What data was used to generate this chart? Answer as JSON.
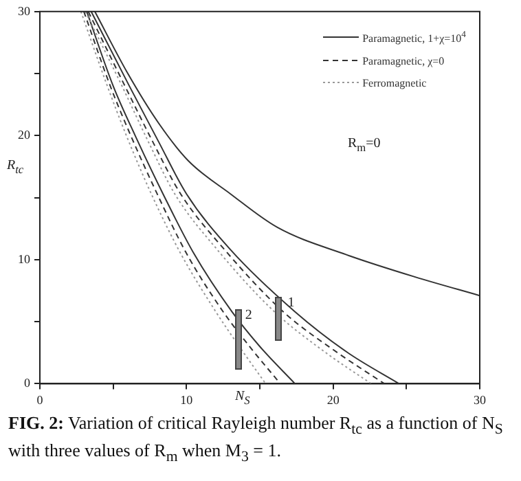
{
  "chart_data": {
    "type": "line",
    "title": "FIG. 2: Variation of critical Rayleigh number R$_{tc}$ as a function of N$_{S}$ with three values of R$_{m}$ when M$_{3}$ = 1.",
    "xlabel": "N$_{S}$",
    "ylabel": "R$_{tc}$",
    "xlim": [
      0,
      30
    ],
    "ylim": [
      0,
      30
    ],
    "xticks": [
      0,
      {
        "value": 5,
        "label": null
      },
      10,
      {
        "value": 15,
        "label": null
      },
      20,
      {
        "value": 25,
        "label": null
      },
      30
    ],
    "yticks": [
      0,
      {
        "value": 5,
        "label": null
      },
      10,
      {
        "value": 15,
        "label": null
      },
      20,
      {
        "value": 25,
        "label": null
      },
      30
    ],
    "grid": false,
    "legend": "top right",
    "marker": "none",
    "series": [
      {
        "name": "Paramagnetic, 1+χ=10$^{4}$",
        "color": "#333333",
        "line_style": "solid",
        "x": [
          3.75,
          6,
          8.1,
          10.1,
          13,
          16.2,
          20.9,
          25.6,
          30
        ],
        "values": [
          30,
          25,
          21,
          18,
          15.3,
          12.6,
          10.4,
          8.6,
          7.1
        ]
      },
      {
        "name": "Paramagnetic, χ=0",
        "color": "#333333",
        "line_style": "dashed",
        "x": [
          3.3,
          5.8,
          7.7,
          9.6,
          12.6,
          16.6,
          20.3,
          23.5
        ],
        "values": [
          30,
          24,
          19.5,
          15.3,
          10.8,
          5.8,
          2.5,
          0
        ]
      },
      {
        "name": "Ferromagnetic",
        "color": "#999999",
        "line_style": "dotted",
        "x": [
          3.1,
          5.6,
          7.4,
          9.2,
          12.1,
          16,
          19.5,
          22.6
        ],
        "values": [
          30,
          24,
          19.5,
          15.3,
          10.8,
          5.8,
          2.5,
          0
        ]
      },
      {
        "color": "#333333",
        "line_style": "solid",
        "x": [
          3.5,
          6.1,
          8.1,
          10,
          13,
          17.4,
          21,
          24.5
        ],
        "values": [
          30,
          24,
          19.5,
          15.3,
          10.8,
          5.8,
          2.5,
          0
        ]
      },
      {
        "color": "#333333",
        "line_style": "dashed",
        "x": [
          3,
          4.8,
          6.2,
          8,
          10,
          12.5,
          14.3,
          16.4
        ],
        "values": [
          30,
          24,
          20,
          15.3,
          10.5,
          5.8,
          3,
          0
        ]
      },
      {
        "color": "#999999",
        "line_style": "dotted",
        "x": [
          2.8,
          4.6,
          5.9,
          7.6,
          9.6,
          12,
          13.6,
          15.4
        ],
        "values": [
          30,
          24,
          20,
          15.3,
          10.5,
          5.8,
          3,
          0
        ]
      },
      {
        "color": "#333333",
        "line_style": "solid",
        "x": [
          3.2,
          5,
          6.5,
          8.4,
          10.5,
          13.1,
          15,
          17.4
        ],
        "values": [
          30,
          24,
          20,
          15.3,
          10.5,
          5.8,
          3,
          0
        ]
      }
    ],
    "annotations": [
      "R$_{m}$=0",
      {
        "text": "1",
        "x": 16.9,
        "y": 6.3
      },
      {
        "text": "2",
        "x": 14,
        "y": 5.3
      }
    ]
  }
}
